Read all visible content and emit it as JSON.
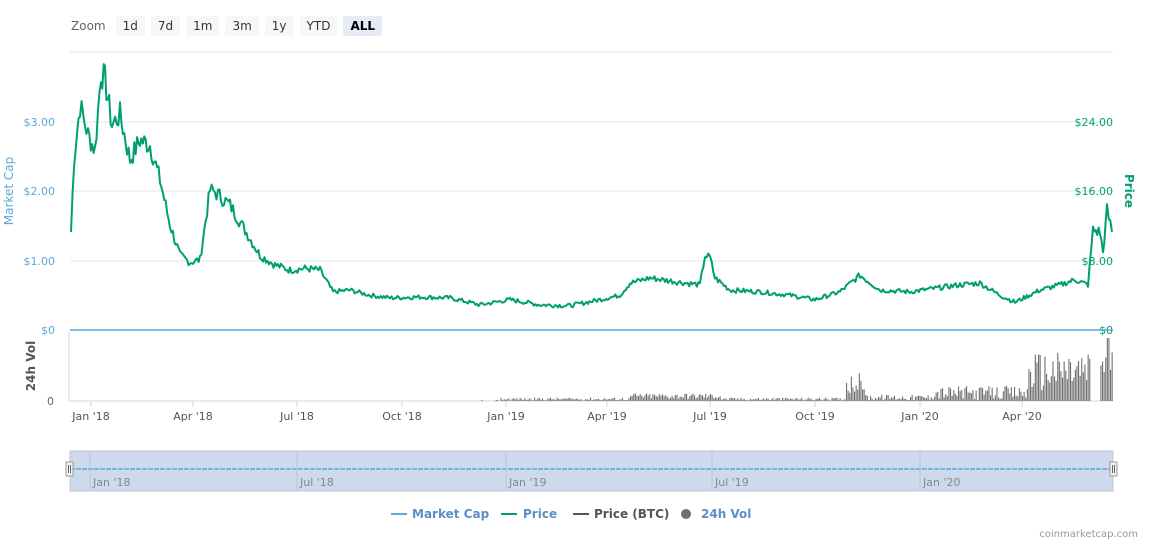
{
  "zoom": {
    "label": "Zoom",
    "buttons": [
      "1d",
      "7d",
      "1m",
      "3m",
      "1y",
      "YTD",
      "ALL"
    ],
    "active": "ALL"
  },
  "colors": {
    "market_cap": "#5ca9d9",
    "price": "#009e73",
    "price_btc": "#555555",
    "volume": "#6f6f6f",
    "grid": "#e6e6e6",
    "navigator_fill": "#cfd9ee"
  },
  "axes": {
    "left_title": "Market Cap",
    "right_title": "Price",
    "volume_title": "24h Vol",
    "left_ticks": [
      "$0",
      "$1.00",
      "$2.00",
      "$3.00"
    ],
    "right_ticks": [
      "$0",
      "$8.00",
      "$16.00",
      "$24.00"
    ],
    "volume_ticks": [
      "0"
    ],
    "x_ticks": [
      "Jan '18",
      "Apr '18",
      "Jul '18",
      "Oct '18",
      "Jan '19",
      "Apr '19",
      "Jul '19",
      "Oct '19",
      "Jan '20",
      "Apr '20"
    ]
  },
  "navigator": {
    "x_ticks": [
      "Jan '18",
      "Jul '18",
      "Jan '19",
      "Jul '19",
      "Jan '20"
    ]
  },
  "legend": [
    {
      "label": "Market Cap",
      "symbol": "line",
      "color": "#5ca9d9"
    },
    {
      "label": "Price",
      "symbol": "line",
      "color": "#009e73"
    },
    {
      "label": "Price (BTC)",
      "symbol": "line",
      "color": "#555555"
    },
    {
      "label": "24h Vol",
      "symbol": "dot",
      "color": "#6f6f6f"
    }
  ],
  "credit": "coinmarketcap.com",
  "chart_data": {
    "type": "line",
    "title": "",
    "xlabel": "",
    "ylabel_left": "Market Cap",
    "ylabel_right": "Price",
    "ylim_left": [
      0,
      3.5
    ],
    "ylim_right": [
      0,
      28
    ],
    "grid": true,
    "legend_position": "bottom",
    "x_tick_labels": [
      "Jan '18",
      "Apr '18",
      "Jul '18",
      "Oct '18",
      "Jan '19",
      "Apr '19",
      "Jul '19",
      "Oct '19",
      "Jan '20",
      "Apr '20"
    ],
    "series": [
      {
        "name": "Price",
        "axis": "right",
        "unit": "USD",
        "points": [
          [
            "Dec '17",
            11.3
          ],
          [
            "Dec '17",
            19.6
          ],
          [
            "Jan '18",
            25.9
          ],
          [
            "Jan '18",
            22.5
          ],
          [
            "Jan '18",
            20.7
          ],
          [
            "Jan '18",
            29.7
          ],
          [
            "Jan '18",
            28.8
          ],
          [
            "Feb '18",
            23.6
          ],
          [
            "Feb '18",
            24.8
          ],
          [
            "Feb '18",
            19.6
          ],
          [
            "Mar '18",
            21.9
          ],
          [
            "Mar '18",
            21.3
          ],
          [
            "Mar '18",
            17.3
          ],
          [
            "Mar '18",
            12.1
          ],
          [
            "Apr '18",
            8.6
          ],
          [
            "Apr '18",
            7.8
          ],
          [
            "Apr '18",
            8.1
          ],
          [
            "May '18",
            16.1
          ],
          [
            "May '18",
            15.9
          ],
          [
            "May '18",
            14.4
          ],
          [
            "Jun '18",
            11.5
          ],
          [
            "Jun '18",
            8.6
          ],
          [
            "Jun '18",
            7.5
          ],
          [
            "Jul '18",
            6.9
          ],
          [
            "Jul '18",
            7.1
          ],
          [
            "Jul '18",
            6.9
          ],
          [
            "Aug '18",
            4.4
          ],
          [
            "Aug '18",
            4.6
          ],
          [
            "Sep '18",
            4.0
          ],
          [
            "Sep '18",
            3.7
          ],
          [
            "Oct '18",
            3.8
          ],
          [
            "Nov '18",
            3.7
          ],
          [
            "Dec '18",
            2.9
          ],
          [
            "Jan '19",
            3.5
          ],
          [
            "Feb '19",
            2.9
          ],
          [
            "Mar '19",
            2.8
          ],
          [
            "Apr '19",
            3.5
          ],
          [
            "Apr '19",
            4.0
          ],
          [
            "May '19",
            5.4
          ],
          [
            "May '19",
            6.0
          ],
          [
            "Jun '19",
            5.5
          ],
          [
            "Jun '19",
            5.2
          ],
          [
            "Jul '19",
            8.6
          ],
          [
            "Jul '19",
            8.3
          ],
          [
            "Jul '19",
            6.0
          ],
          [
            "Aug '19",
            4.6
          ],
          [
            "Sep '19",
            4.4
          ],
          [
            "Sep '19",
            4.0
          ],
          [
            "Oct '19",
            3.5
          ],
          [
            "Nov '19",
            4.4
          ],
          [
            "Nov '19",
            6.3
          ],
          [
            "Dec '19",
            4.6
          ],
          [
            "Jan '20",
            4.4
          ],
          [
            "Jan '20",
            4.8
          ],
          [
            "Feb '20",
            5.2
          ],
          [
            "Mar '20",
            5.4
          ],
          [
            "Mar '20",
            4.0
          ],
          [
            "Apr '20",
            3.2
          ],
          [
            "Apr '20",
            4.6
          ],
          [
            "May '20",
            5.2
          ],
          [
            "May '20",
            5.8
          ],
          [
            "Jun '20",
            5.2
          ],
          [
            "Jun '20",
            11.5
          ],
          [
            "Jun '20",
            11.3
          ],
          [
            "Jun '20",
            8.9
          ],
          [
            "Jun '20",
            13.8
          ],
          [
            "Jun '20",
            11.3
          ]
        ]
      },
      {
        "name": "Market Cap",
        "axis": "left",
        "unit": "USD",
        "points": [
          [
            "Dec '17",
            0
          ],
          [
            "Jun '20",
            0
          ]
        ]
      },
      {
        "name": "24h Vol",
        "type": "bar",
        "note": "near-zero until late 2018, small through 2019, spikes Nov '19 and Apr–Jun '20"
      }
    ]
  }
}
